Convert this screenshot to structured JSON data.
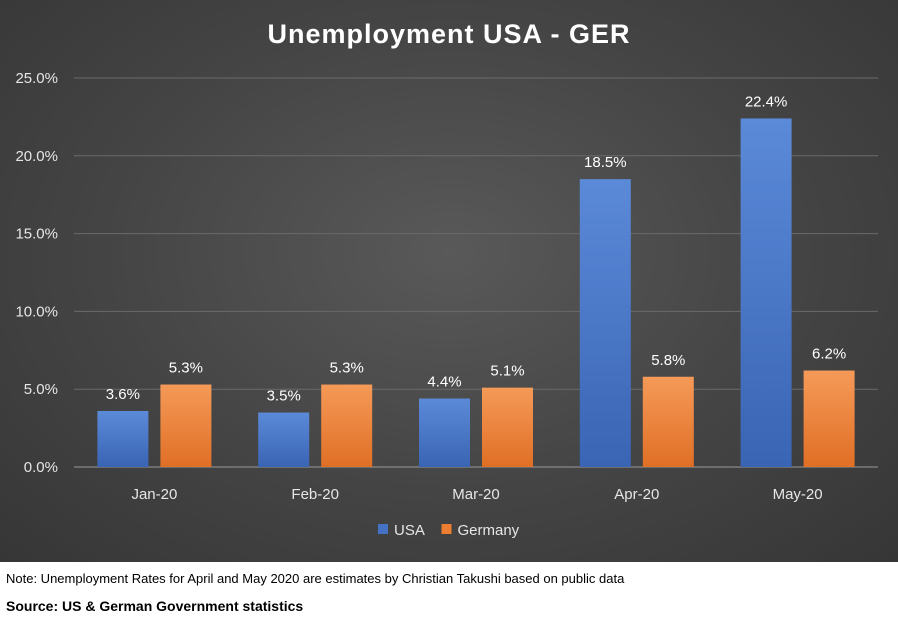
{
  "chart_data": {
    "type": "bar",
    "title": "Unemployment USA - GER",
    "categories": [
      "Jan-20",
      "Feb-20",
      "Mar-20",
      "Apr-20",
      "May-20"
    ],
    "series": [
      {
        "name": "USA",
        "color": "#4472c4",
        "values": [
          3.6,
          3.5,
          4.4,
          18.5,
          22.4
        ],
        "labels": [
          "3.6%",
          "3.5%",
          "4.4%",
          "18.5%",
          "22.4%"
        ]
      },
      {
        "name": "Germany",
        "color": "#ed7d31",
        "values": [
          5.3,
          5.3,
          5.1,
          5.8,
          6.2
        ],
        "labels": [
          "5.3%",
          "5.3%",
          "5.1%",
          "5.8%",
          "6.2%"
        ]
      }
    ],
    "yticks": [
      0,
      5,
      10,
      15,
      20,
      25
    ],
    "ytick_labels": [
      "0.0%",
      "5.0%",
      "10.0%",
      "15.0%",
      "20.0%",
      "25.0%"
    ],
    "ylim": [
      0,
      25
    ],
    "xlabel": "",
    "ylabel": "",
    "grid": true,
    "legend": "bottom-center"
  },
  "footer": {
    "note": "Note: Unemployment Rates for April and May 2020 are estimates by Christian Takushi based on public data",
    "source": "Source: US & German Government statistics"
  }
}
